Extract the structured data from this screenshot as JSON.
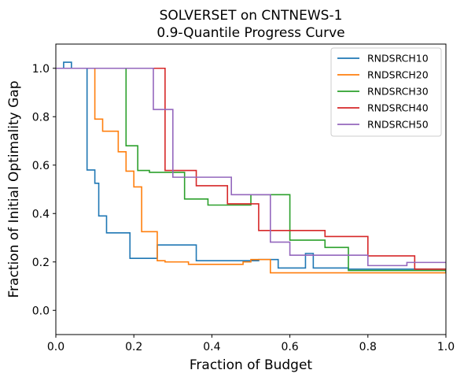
{
  "chart_data": {
    "type": "line",
    "step": true,
    "title": [
      "SOLVERSET on CNTNEWS-1",
      "0.9-Quantile Progress Curve"
    ],
    "xlabel": "Fraction of Budget",
    "ylabel": "Fraction of Initial Optimality Gap",
    "xlim": [
      0,
      1
    ],
    "ylim": [
      -0.1,
      1.1
    ],
    "xticks": [
      0.0,
      0.2,
      0.4,
      0.6,
      0.8,
      1.0
    ],
    "xtick_labels": [
      "0.0",
      "0.2",
      "0.4",
      "0.6",
      "0.8",
      "1.0"
    ],
    "yticks": [
      0.0,
      0.2,
      0.4,
      0.6,
      0.8,
      1.0
    ],
    "ytick_labels": [
      "0.0",
      "0.2",
      "0.4",
      "0.6",
      "0.8",
      "1.0"
    ],
    "grid": false,
    "legend_position": "top-right",
    "series": [
      {
        "name": "RNDSRCH10",
        "color": "#1f77b4",
        "x": [
          0,
          0.02,
          0.04,
          0.08,
          0.1,
          0.11,
          0.13,
          0.19,
          0.26,
          0.36,
          0.52,
          0.57,
          0.64,
          0.66,
          0.75,
          1.0
        ],
        "y": [
          1.0,
          1.025,
          1.0,
          0.58,
          0.525,
          0.39,
          0.32,
          0.215,
          0.27,
          0.205,
          0.21,
          0.175,
          0.235,
          0.175,
          0.17,
          0.17
        ]
      },
      {
        "name": "RNDSRCH20",
        "color": "#ff7f0e",
        "x": [
          0,
          0.1,
          0.12,
          0.16,
          0.18,
          0.2,
          0.22,
          0.26,
          0.28,
          0.34,
          0.48,
          0.5,
          0.54,
          0.55,
          1.0
        ],
        "y": [
          1.0,
          0.79,
          0.74,
          0.655,
          0.575,
          0.51,
          0.325,
          0.205,
          0.2,
          0.19,
          0.2,
          0.21,
          0.21,
          0.155,
          0.155
        ]
      },
      {
        "name": "RNDSRCH30",
        "color": "#2ca02c",
        "x": [
          0,
          0.18,
          0.21,
          0.24,
          0.33,
          0.39,
          0.5,
          0.6,
          0.69,
          0.75,
          1.0
        ],
        "y": [
          1.0,
          0.68,
          0.578,
          0.57,
          0.46,
          0.435,
          0.478,
          0.29,
          0.26,
          0.165,
          0.155
        ]
      },
      {
        "name": "RNDSRCH40",
        "color": "#d62728",
        "x": [
          0,
          0.28,
          0.36,
          0.44,
          0.52,
          0.69,
          0.8,
          0.92,
          0.96,
          1.0
        ],
        "y": [
          1.0,
          0.578,
          0.515,
          0.44,
          0.33,
          0.305,
          0.225,
          0.17,
          0.17,
          0.17
        ]
      },
      {
        "name": "RNDSRCH50",
        "color": "#9467bd",
        "x": [
          0,
          0.25,
          0.3,
          0.36,
          0.45,
          0.55,
          0.6,
          0.8,
          0.9,
          1.0
        ],
        "y": [
          1.0,
          0.83,
          0.55,
          0.55,
          0.478,
          0.282,
          0.228,
          0.185,
          0.198,
          0.198
        ]
      }
    ]
  }
}
